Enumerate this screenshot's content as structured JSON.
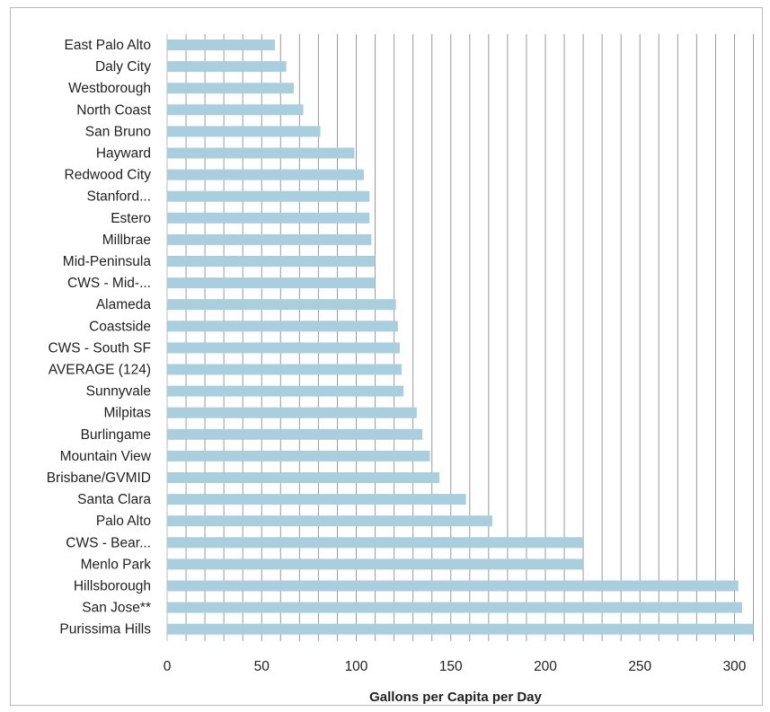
{
  "chart_data": {
    "type": "bar",
    "orientation": "horizontal",
    "title": "",
    "xlabel": "Gallons per Capita per Day",
    "ylabel": "",
    "xlim": [
      0,
      310
    ],
    "xticks": [
      0,
      50,
      100,
      150,
      200,
      250,
      300
    ],
    "grid": "vertical lines every 10",
    "bar_color": "#a9cedd",
    "categories": [
      "East Palo Alto",
      "Daly City",
      "Westborough",
      "North Coast",
      "San Bruno",
      "Hayward",
      "Redwood City",
      "Stanford...",
      "Estero",
      "Millbrae",
      "Mid-Peninsula",
      "CWS - Mid-...",
      "Alameda",
      "Coastside",
      "CWS - South SF",
      "AVERAGE (124)",
      "Sunnyvale",
      "Milpitas",
      "Burlingame",
      "Mountain View",
      "Brisbane/GVMID",
      "Santa Clara",
      "Palo Alto",
      "CWS - Bear...",
      "Menlo Park",
      "Hillsborough",
      "San Jose**",
      "Purissima Hills"
    ],
    "values": [
      57,
      63,
      67,
      72,
      81,
      99,
      104,
      107,
      107,
      108,
      110,
      110,
      121,
      122,
      123,
      124,
      125,
      132,
      135,
      139,
      144,
      158,
      172,
      220,
      220,
      302,
      304,
      310
    ]
  }
}
